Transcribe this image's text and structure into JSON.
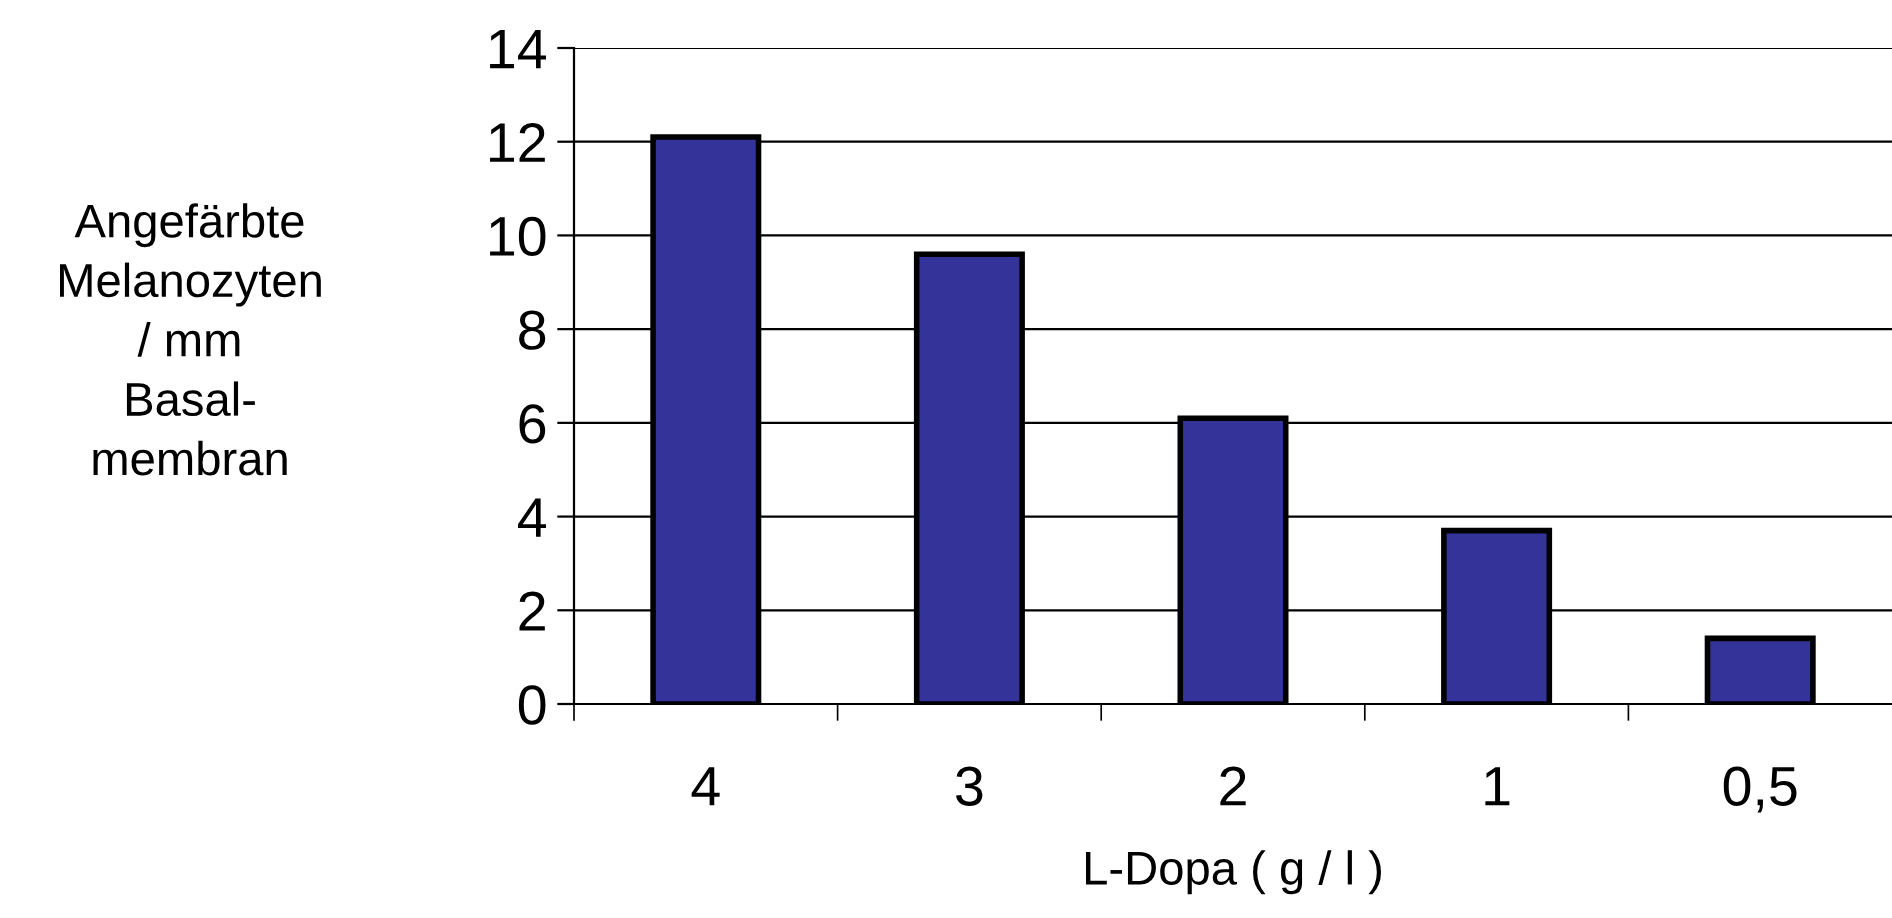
{
  "chart_data": {
    "type": "bar",
    "xlabel": "L-Dopa ( g / l )",
    "ylabel": "Angefärbte\nMelanozyten\n/ mm\nBasal-\nmembran",
    "categories": [
      "4",
      "3",
      "2",
      "1",
      "0,5"
    ],
    "values": [
      12.1,
      9.6,
      6.1,
      3.7,
      1.4
    ],
    "color": "#333399",
    "ylim": [
      0,
      14
    ],
    "yticks": [
      0,
      2,
      4,
      6,
      8,
      10,
      12,
      14
    ],
    "grid": "y"
  }
}
